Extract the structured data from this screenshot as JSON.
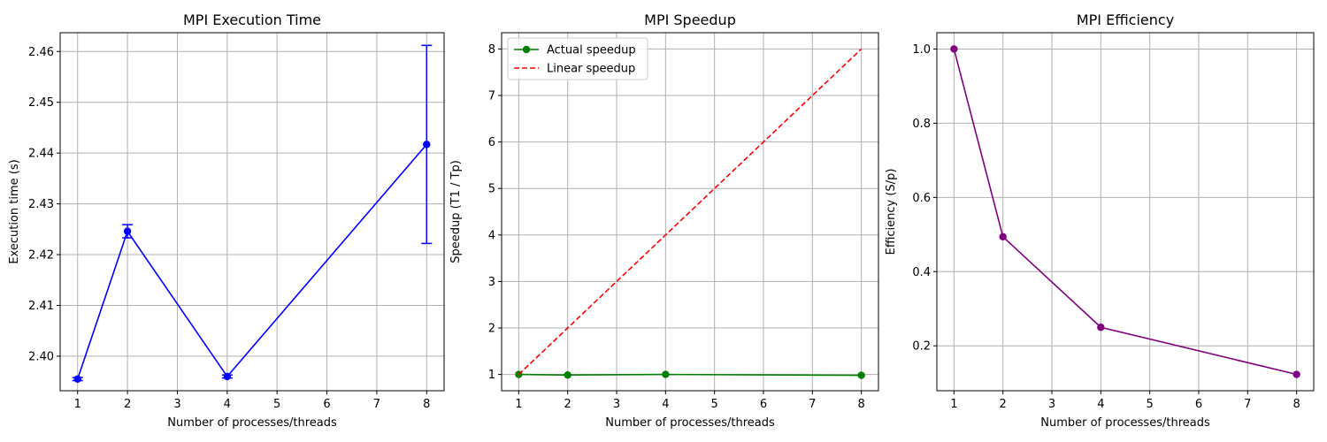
{
  "chart_data": [
    {
      "type": "line",
      "title": "MPI Execution Time",
      "xlabel": "Number of processes/threads",
      "ylabel": "Execution time (s)",
      "x": [
        1,
        2,
        4,
        8
      ],
      "series": [
        {
          "values": [
            2.3955,
            2.4246,
            2.396,
            2.4417
          ],
          "error": [
            0.0003,
            0.0013,
            0.0003,
            0.0195
          ],
          "color": "#0000ff",
          "marker": "circle",
          "linestyle": "solid"
        }
      ],
      "xlim": [
        0.65,
        8.35
      ],
      "ylim": [
        2.3932,
        2.4637
      ],
      "xticks": [
        1,
        2,
        3,
        4,
        5,
        6,
        7,
        8
      ],
      "yticks": [
        2.4,
        2.41,
        2.42,
        2.43,
        2.44,
        2.45,
        2.46
      ],
      "ytick_labels": [
        "2.40",
        "2.41",
        "2.42",
        "2.43",
        "2.44",
        "2.45",
        "2.46"
      ],
      "grid": true
    },
    {
      "type": "line",
      "title": "MPI Speedup",
      "xlabel": "Number of processes/threads",
      "ylabel": "Speedup (T1 / Tp)",
      "x": [
        1,
        2,
        4,
        8
      ],
      "series": [
        {
          "name": "Actual speedup",
          "values": [
            1.0,
            0.988,
            1.0,
            0.981
          ],
          "color": "#008000",
          "marker": "circle",
          "linestyle": "solid"
        },
        {
          "name": "Linear speedup",
          "values": [
            1,
            2,
            4,
            8
          ],
          "color": "#ff0000",
          "marker": "none",
          "linestyle": "dashed"
        }
      ],
      "xlim": [
        0.65,
        8.35
      ],
      "ylim": [
        0.65,
        8.35
      ],
      "xticks": [
        1,
        2,
        3,
        4,
        5,
        6,
        7,
        8
      ],
      "yticks": [
        1,
        2,
        3,
        4,
        5,
        6,
        7,
        8
      ],
      "ytick_labels": [
        "1",
        "2",
        "3",
        "4",
        "5",
        "6",
        "7",
        "8"
      ],
      "legend": "top-left",
      "grid": true
    },
    {
      "type": "line",
      "title": "MPI Efficiency",
      "xlabel": "Number of processes/threads",
      "ylabel": "Efficiency (S/p)",
      "x": [
        1,
        2,
        4,
        8
      ],
      "series": [
        {
          "values": [
            1.0,
            0.494,
            0.25,
            0.123
          ],
          "color": "#800080",
          "marker": "circle",
          "linestyle": "solid"
        }
      ],
      "xlim": [
        0.65,
        8.35
      ],
      "ylim": [
        0.079,
        1.044
      ],
      "xticks": [
        1,
        2,
        3,
        4,
        5,
        6,
        7,
        8
      ],
      "yticks": [
        0.2,
        0.4,
        0.6,
        0.8,
        1.0
      ],
      "ytick_labels": [
        "0.2",
        "0.4",
        "0.6",
        "0.8",
        "1.0"
      ],
      "grid": true
    }
  ]
}
